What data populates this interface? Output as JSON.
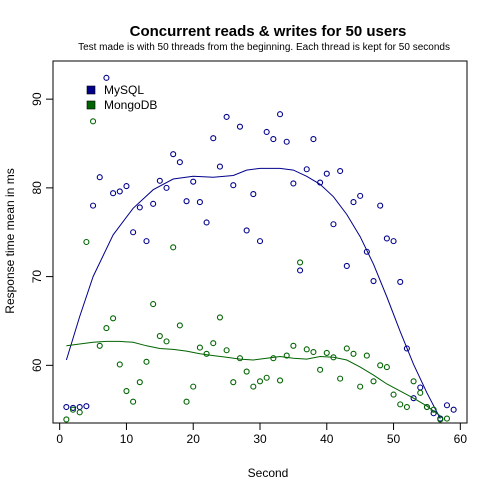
{
  "chart_data": {
    "type": "scatter",
    "title": "Concurrent reads & writes for 50 users",
    "subtitle": "Test made is with 50 threads from the beginning. Each thread is kept for 50 seconds",
    "xlabel": "Second",
    "ylabel": "Response time mean in ms",
    "xlim": [
      -1,
      61
    ],
    "ylim": [
      53.5,
      94.3
    ],
    "x_ticks": [
      0,
      10,
      20,
      30,
      40,
      50,
      60
    ],
    "y_ticks": [
      60,
      70,
      80,
      90
    ],
    "legend_position": "top-left",
    "series": [
      {
        "name": "MySQL",
        "color": "#00008b",
        "points": [
          [
            1,
            55.3
          ],
          [
            2,
            55.2
          ],
          [
            3,
            55.3
          ],
          [
            4,
            55.4
          ],
          [
            5,
            78.0
          ],
          [
            6,
            81.2
          ],
          [
            7,
            92.4
          ],
          [
            8,
            79.4
          ],
          [
            9,
            79.6
          ],
          [
            10,
            80.2
          ],
          [
            11,
            75.0
          ],
          [
            12,
            77.8
          ],
          [
            13,
            74.0
          ],
          [
            14,
            78.2
          ],
          [
            15,
            80.8
          ],
          [
            16,
            80.0
          ],
          [
            17,
            83.8
          ],
          [
            18,
            82.9
          ],
          [
            19,
            78.5
          ],
          [
            20,
            80.7
          ],
          [
            21,
            78.4
          ],
          [
            22,
            76.1
          ],
          [
            23,
            85.6
          ],
          [
            24,
            82.4
          ],
          [
            25,
            88.0
          ],
          [
            26,
            80.3
          ],
          [
            27,
            86.9
          ],
          [
            28,
            75.2
          ],
          [
            29,
            79.3
          ],
          [
            30,
            74.0
          ],
          [
            31,
            86.3
          ],
          [
            32,
            85.5
          ],
          [
            33,
            88.3
          ],
          [
            34,
            85.2
          ],
          [
            35,
            80.5
          ],
          [
            36,
            70.7
          ],
          [
            37,
            82.1
          ],
          [
            38,
            85.5
          ],
          [
            39,
            80.6
          ],
          [
            40,
            81.6
          ],
          [
            41,
            75.9
          ],
          [
            42,
            81.9
          ],
          [
            43,
            71.2
          ],
          [
            44,
            78.4
          ],
          [
            45,
            79.1
          ],
          [
            46,
            72.8
          ],
          [
            47,
            69.5
          ],
          [
            48,
            78.0
          ],
          [
            49,
            74.3
          ],
          [
            50,
            74.0
          ],
          [
            51,
            69.4
          ],
          [
            52,
            61.9
          ],
          [
            53,
            56.3
          ],
          [
            54,
            57.5
          ],
          [
            55,
            55.3
          ],
          [
            56,
            54.6
          ],
          [
            57,
            54.0
          ],
          [
            58,
            55.5
          ],
          [
            59,
            55.0
          ]
        ],
        "trend": [
          [
            1,
            60.6
          ],
          [
            3,
            65.5
          ],
          [
            5,
            70.0
          ],
          [
            8,
            74.7
          ],
          [
            11,
            77.7
          ],
          [
            14,
            79.8
          ],
          [
            17,
            81.0
          ],
          [
            20,
            81.3
          ],
          [
            23,
            81.2
          ],
          [
            26,
            81.4
          ],
          [
            28,
            82.0
          ],
          [
            30,
            82.2
          ],
          [
            33,
            82.2
          ],
          [
            35,
            82.0
          ],
          [
            37,
            81.3
          ],
          [
            39,
            80.4
          ],
          [
            41,
            79.0
          ],
          [
            43,
            77.0
          ],
          [
            45,
            74.5
          ],
          [
            47,
            71.4
          ],
          [
            49,
            67.7
          ],
          [
            51,
            63.8
          ],
          [
            53,
            60.1
          ],
          [
            55,
            56.9
          ],
          [
            57,
            54.0
          ]
        ]
      },
      {
        "name": "MongoDB",
        "color": "#006400",
        "points": [
          [
            1,
            53.9
          ],
          [
            2,
            55.0
          ],
          [
            3,
            54.7
          ],
          [
            4,
            73.9
          ],
          [
            5,
            87.5
          ],
          [
            6,
            62.2
          ],
          [
            7,
            64.2
          ],
          [
            8,
            65.3
          ],
          [
            9,
            60.1
          ],
          [
            10,
            57.1
          ],
          [
            11,
            55.9
          ],
          [
            12,
            58.1
          ],
          [
            13,
            60.4
          ],
          [
            14,
            66.9
          ],
          [
            15,
            63.3
          ],
          [
            16,
            62.7
          ],
          [
            17,
            73.3
          ],
          [
            18,
            64.5
          ],
          [
            19,
            55.9
          ],
          [
            20,
            57.6
          ],
          [
            21,
            62.0
          ],
          [
            22,
            61.3
          ],
          [
            23,
            62.5
          ],
          [
            24,
            65.4
          ],
          [
            25,
            61.7
          ],
          [
            26,
            58.1
          ],
          [
            27,
            60.8
          ],
          [
            28,
            59.3
          ],
          [
            29,
            57.6
          ],
          [
            30,
            58.2
          ],
          [
            31,
            58.6
          ],
          [
            32,
            60.8
          ],
          [
            33,
            58.3
          ],
          [
            34,
            61.1
          ],
          [
            35,
            62.2
          ],
          [
            36,
            71.6
          ],
          [
            37,
            61.8
          ],
          [
            38,
            61.5
          ],
          [
            39,
            59.5
          ],
          [
            40,
            61.4
          ],
          [
            41,
            60.9
          ],
          [
            42,
            58.5
          ],
          [
            43,
            61.9
          ],
          [
            44,
            61.3
          ],
          [
            45,
            57.6
          ],
          [
            46,
            61.1
          ],
          [
            47,
            58.2
          ],
          [
            48,
            60.0
          ],
          [
            49,
            59.8
          ],
          [
            50,
            56.7
          ],
          [
            51,
            55.6
          ],
          [
            52,
            55.3
          ],
          [
            53,
            58.2
          ],
          [
            54,
            56.9
          ],
          [
            55,
            55.3
          ],
          [
            56,
            55.0
          ],
          [
            57,
            53.9
          ],
          [
            58,
            54.0
          ]
        ],
        "trend": [
          [
            1,
            62.2
          ],
          [
            3,
            62.4
          ],
          [
            5,
            62.6
          ],
          [
            7,
            62.7
          ],
          [
            9,
            62.7
          ],
          [
            11,
            62.6
          ],
          [
            13,
            62.2
          ],
          [
            15,
            61.9
          ],
          [
            17,
            61.8
          ],
          [
            19,
            61.6
          ],
          [
            21,
            61.3
          ],
          [
            23,
            61.1
          ],
          [
            25,
            60.9
          ],
          [
            27,
            60.7
          ],
          [
            29,
            60.6
          ],
          [
            31,
            60.8
          ],
          [
            33,
            61.0
          ],
          [
            35,
            60.8
          ],
          [
            37,
            60.7
          ],
          [
            39,
            61.0
          ],
          [
            41,
            60.9
          ],
          [
            43,
            60.6
          ],
          [
            45,
            59.8
          ],
          [
            47,
            58.9
          ],
          [
            49,
            57.9
          ],
          [
            51,
            57.1
          ],
          [
            53,
            56.3
          ],
          [
            55,
            55.4
          ],
          [
            57,
            54.3
          ]
        ]
      }
    ]
  }
}
